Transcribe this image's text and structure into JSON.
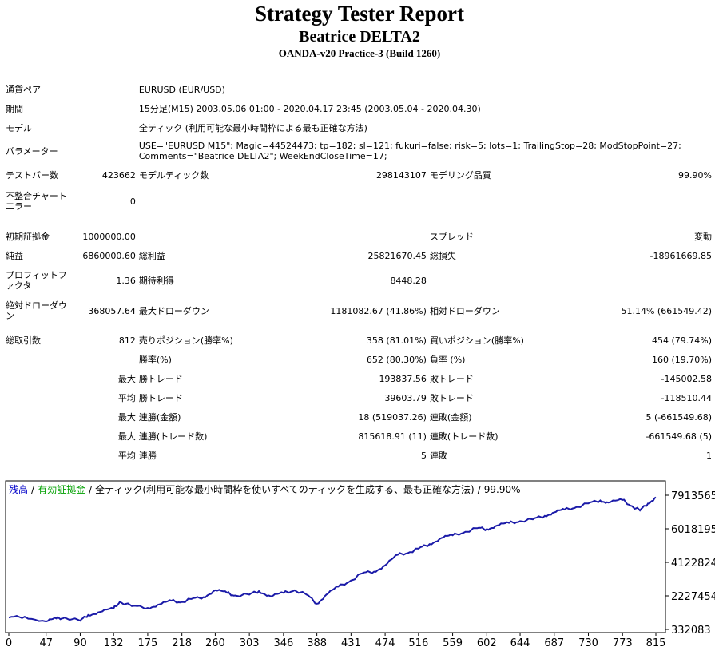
{
  "header": {
    "title": "Strategy Tester Report",
    "ea_name": "Beatrice DELTA2",
    "server": "OANDA-v20 Practice-3 (Build 1260)"
  },
  "info": {
    "symbol_label": "通貨ペア",
    "symbol": "EURUSD (EUR/USD)",
    "period_label": "期間",
    "period": "15分足(M15) 2003.05.06 01:00 - 2020.04.17 23:45 (2003.05.04 - 2020.04.30)",
    "model_label": "モデル",
    "model": "全ティック (利用可能な最小時間枠による最も正確な方法)",
    "params_label": "パラメーター",
    "params_line1": "USE=\"EURUSD M15\"; Magic=44524473; tp=182; sl=121; fukuri=false; risk=5; lots=1; TrailingStop=28; ModStopPoint=27;",
    "params_line2": "Comments=\"Beatrice DELTA2\"; WeekEndCloseTime=17;"
  },
  "stats": {
    "bars_label": "テストバー数",
    "bars": "423662",
    "ticks_label": "モデルティック数",
    "ticks": "298143107",
    "quality_label": "モデリング品質",
    "quality": "99.90%",
    "mismatch_label_1": "不整合チャート",
    "mismatch_label_2": "エラー",
    "mismatch": "0",
    "deposit_label": "初期証拠金",
    "deposit": "1000000.00",
    "spread_label": "スプレッド",
    "spread": "変動",
    "net_label": "純益",
    "net": "6860000.60",
    "gross_profit_label": "総利益",
    "gross_profit": "25821670.45",
    "gross_loss_label": "総損失",
    "gross_loss": "-18961669.85",
    "pf_label_1": "プロフィットフ",
    "pf_label_2": "ァクタ",
    "pf": "1.36",
    "expected_label": "期待利得",
    "expected": "8448.28",
    "abs_dd_label_1": "絶対ドローダウ",
    "abs_dd_label_2": "ン",
    "abs_dd": "368057.64",
    "max_dd_label": "最大ドローダウン",
    "max_dd": "1181082.67 (41.86%)",
    "rel_dd_label": "相対ドローダウン",
    "rel_dd": "51.14% (661549.42)",
    "trades_label": "総取引数",
    "trades": "812",
    "short_label": "売りポジション(勝率%)",
    "short": "358 (81.01%)",
    "long_label": "買いポジション(勝率%)",
    "long": "454 (79.74%)",
    "win_label": "勝率(%)",
    "win": "652 (80.30%)",
    "loss_label": "負率 (%)",
    "loss": "160 (19.70%)",
    "max_word": "最大",
    "avg_word": "平均",
    "win_trade_label": "勝トレード",
    "lose_trade_label": "敗トレード",
    "largest_win": "193837.56",
    "largest_loss": "-145002.58",
    "avg_win": "39603.79",
    "avg_loss": "-118510.44",
    "consec_win_money_label": "連勝(金額)",
    "consec_win_money": "18 (519037.26)",
    "consec_loss_money_label": "連敗(金額)",
    "consec_loss_money": "5 (-661549.68)",
    "consec_win_count_label": "連勝(トレード数)",
    "consec_win_count": "815618.91 (11)",
    "consec_loss_count_label": "連敗(トレード数)",
    "consec_loss_count": "-661549.68 (5)",
    "avg_consec_win_label": "連勝",
    "avg_consec_win": "5",
    "avg_consec_loss_label": "連敗",
    "avg_consec_loss": "1"
  },
  "chart_data": {
    "type": "line",
    "legend_balance": "残高",
    "legend_equity": "有効証拠金",
    "legend_rest": "全ティック(利用可能な最小時間枠を使いすべてのティックを生成する、最も正確な方法)",
    "legend_quality": "99.90%",
    "sep": "/",
    "balance_color": "#0000c8",
    "equity_color": "#00a000",
    "line_color": "#1a1aa8",
    "x_ticks": [
      "0",
      "47",
      "90",
      "132",
      "175",
      "218",
      "260",
      "303",
      "346",
      "388",
      "431",
      "474",
      "516",
      "559",
      "602",
      "644",
      "687",
      "730",
      "773",
      "815"
    ],
    "y_ticks": [
      "7913565",
      "6018195",
      "4122824",
      "2227454",
      "332083"
    ],
    "ylim": [
      332083,
      7913565
    ],
    "xlim": [
      0,
      815
    ],
    "series": [
      {
        "x": [
          0,
          20,
          47,
          60,
          70,
          90,
          100,
          115,
          132,
          140,
          155,
          175,
          190,
          205,
          218,
          230,
          245,
          260,
          275,
          285,
          303,
          315,
          330,
          346,
          360,
          375,
          388,
          400,
          415,
          431,
          445,
          460,
          474,
          490,
          505,
          516,
          530,
          545,
          559,
          575,
          590,
          602,
          615,
          630,
          644,
          660,
          675,
          687,
          700,
          715,
          730,
          745,
          755,
          773,
          785,
          795,
          805,
          815
        ],
        "y": [
          1000000,
          1050000,
          780000,
          950000,
          1000000,
          820000,
          1150000,
          1320000,
          1520000,
          1900000,
          1650000,
          1550000,
          1750000,
          1950000,
          1880000,
          2050000,
          2150000,
          2550000,
          2400000,
          2250000,
          2300000,
          2500000,
          2200000,
          2400000,
          2550000,
          2300000,
          1780000,
          2300000,
          2750000,
          3100000,
          3500000,
          3600000,
          3950000,
          4550000,
          4700000,
          4900000,
          5150000,
          5500000,
          5650000,
          5850000,
          6050000,
          6000000,
          6200000,
          6350000,
          6450000,
          6550000,
          6750000,
          6950000,
          7100000,
          7250000,
          7450000,
          7620000,
          7500000,
          7650000,
          7300000,
          7050000,
          7450000,
          7800000
        ]
      }
    ]
  }
}
